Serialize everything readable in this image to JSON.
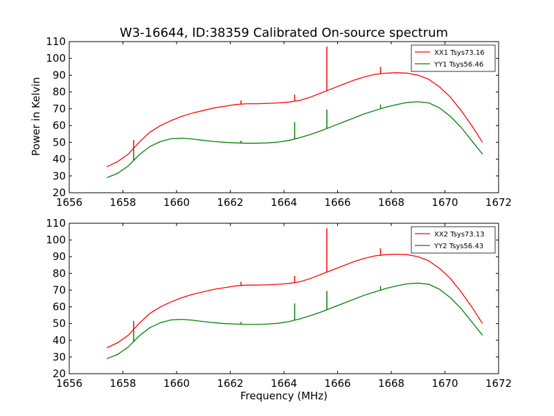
{
  "chart_data": {
    "title": "W3-16644, ID:38359 Calibrated On-source spectrum",
    "xlabel": "Frequency (MHz)",
    "ylabel": "Power in Kelvin",
    "panels": [
      {
        "type": "line",
        "xlim": [
          1656,
          1672
        ],
        "ylim": [
          20,
          110
        ],
        "xticks": [
          1656,
          1658,
          1660,
          1662,
          1664,
          1666,
          1668,
          1670,
          1672
        ],
        "yticks": [
          20,
          30,
          40,
          50,
          60,
          70,
          80,
          90,
          100,
          110
        ],
        "legend_position": "top-right",
        "series": [
          {
            "name": "XX1 Tsys73.16",
            "color": "#ff0000",
            "points": [
              [
                1657.4,
                35.5
              ],
              [
                1657.8,
                38.5
              ],
              [
                1658.2,
                43.0
              ],
              [
                1658.6,
                50.0
              ],
              [
                1659.0,
                56.0
              ],
              [
                1659.4,
                60.0
              ],
              [
                1659.8,
                63.0
              ],
              [
                1660.2,
                65.5
              ],
              [
                1660.6,
                67.5
              ],
              [
                1661.0,
                69.0
              ],
              [
                1661.4,
                70.5
              ],
              [
                1661.8,
                71.5
              ],
              [
                1662.2,
                72.5
              ],
              [
                1662.6,
                73.0
              ],
              [
                1663.0,
                73.0
              ],
              [
                1663.4,
                73.2
              ],
              [
                1663.8,
                73.5
              ],
              [
                1664.2,
                74.0
              ],
              [
                1664.6,
                75.0
              ],
              [
                1665.0,
                77.0
              ],
              [
                1665.4,
                79.5
              ],
              [
                1665.8,
                82.0
              ],
              [
                1666.2,
                84.5
              ],
              [
                1666.6,
                87.0
              ],
              [
                1667.0,
                89.0
              ],
              [
                1667.4,
                90.5
              ],
              [
                1667.8,
                91.2
              ],
              [
                1668.2,
                91.5
              ],
              [
                1668.6,
                91.2
              ],
              [
                1669.0,
                90.0
              ],
              [
                1669.4,
                87.5
              ],
              [
                1669.8,
                83.0
              ],
              [
                1670.2,
                77.0
              ],
              [
                1670.6,
                69.0
              ],
              [
                1671.0,
                60.0
              ],
              [
                1671.4,
                50.0
              ]
            ],
            "spikes": [
              [
                1658.4,
                51.5
              ],
              [
                1662.4,
                75.0
              ],
              [
                1664.4,
                78.5
              ],
              [
                1665.6,
                107.0
              ],
              [
                1667.6,
                95.0
              ]
            ]
          },
          {
            "name": "YY1 Tsys56.46",
            "color": "#008000",
            "points": [
              [
                1657.4,
                29.0
              ],
              [
                1657.8,
                31.5
              ],
              [
                1658.2,
                36.0
              ],
              [
                1658.6,
                42.5
              ],
              [
                1659.0,
                47.5
              ],
              [
                1659.4,
                50.5
              ],
              [
                1659.8,
                52.2
              ],
              [
                1660.2,
                52.5
              ],
              [
                1660.6,
                52.0
              ],
              [
                1661.0,
                51.2
              ],
              [
                1661.4,
                50.5
              ],
              [
                1661.8,
                50.0
              ],
              [
                1662.2,
                49.7
              ],
              [
                1662.6,
                49.5
              ],
              [
                1663.0,
                49.5
              ],
              [
                1663.4,
                49.7
              ],
              [
                1663.8,
                50.2
              ],
              [
                1664.2,
                51.2
              ],
              [
                1664.6,
                52.8
              ],
              [
                1665.0,
                54.8
              ],
              [
                1665.4,
                57.0
              ],
              [
                1665.8,
                59.5
              ],
              [
                1666.2,
                62.0
              ],
              [
                1666.6,
                64.5
              ],
              [
                1667.0,
                67.0
              ],
              [
                1667.4,
                69.0
              ],
              [
                1667.8,
                71.0
              ],
              [
                1668.2,
                72.5
              ],
              [
                1668.6,
                73.8
              ],
              [
                1669.0,
                74.2
              ],
              [
                1669.4,
                73.5
              ],
              [
                1669.8,
                70.5
              ],
              [
                1670.2,
                65.5
              ],
              [
                1670.6,
                59.0
              ],
              [
                1671.0,
                51.0
              ],
              [
                1671.4,
                43.0
              ]
            ],
            "spikes": [
              [
                1658.4,
                47.0
              ],
              [
                1662.4,
                51.0
              ],
              [
                1664.4,
                62.0
              ],
              [
                1665.6,
                69.5
              ],
              [
                1667.6,
                72.5
              ]
            ]
          }
        ]
      },
      {
        "type": "line",
        "xlim": [
          1656,
          1672
        ],
        "ylim": [
          20,
          110
        ],
        "xticks": [
          1656,
          1658,
          1660,
          1662,
          1664,
          1666,
          1668,
          1670,
          1672
        ],
        "yticks": [
          20,
          30,
          40,
          50,
          60,
          70,
          80,
          90,
          100,
          110
        ],
        "legend_position": "top-right",
        "series": [
          {
            "name": "XX2 Tsys73.13",
            "color": "#ff0000",
            "points": [
              [
                1657.4,
                35.5
              ],
              [
                1657.8,
                38.5
              ],
              [
                1658.2,
                43.0
              ],
              [
                1658.6,
                50.0
              ],
              [
                1659.0,
                56.0
              ],
              [
                1659.4,
                60.0
              ],
              [
                1659.8,
                63.0
              ],
              [
                1660.2,
                65.5
              ],
              [
                1660.6,
                67.5
              ],
              [
                1661.0,
                69.0
              ],
              [
                1661.4,
                70.5
              ],
              [
                1661.8,
                71.5
              ],
              [
                1662.2,
                72.5
              ],
              [
                1662.6,
                73.0
              ],
              [
                1663.0,
                73.0
              ],
              [
                1663.4,
                73.2
              ],
              [
                1663.8,
                73.5
              ],
              [
                1664.2,
                74.0
              ],
              [
                1664.6,
                75.0
              ],
              [
                1665.0,
                77.0
              ],
              [
                1665.4,
                79.5
              ],
              [
                1665.8,
                82.0
              ],
              [
                1666.2,
                84.5
              ],
              [
                1666.6,
                87.0
              ],
              [
                1667.0,
                89.0
              ],
              [
                1667.4,
                90.5
              ],
              [
                1667.8,
                91.2
              ],
              [
                1668.2,
                91.5
              ],
              [
                1668.6,
                91.2
              ],
              [
                1669.0,
                90.0
              ],
              [
                1669.4,
                87.5
              ],
              [
                1669.8,
                83.0
              ],
              [
                1670.2,
                77.0
              ],
              [
                1670.6,
                69.0
              ],
              [
                1671.0,
                60.0
              ],
              [
                1671.4,
                50.0
              ]
            ],
            "spikes": [
              [
                1658.4,
                51.5
              ],
              [
                1662.4,
                75.0
              ],
              [
                1664.4,
                78.5
              ],
              [
                1665.6,
                107.0
              ],
              [
                1667.6,
                95.0
              ]
            ]
          },
          {
            "name": "YY2 Tsys56.43",
            "color": "#008000",
            "points": [
              [
                1657.4,
                29.0
              ],
              [
                1657.8,
                31.5
              ],
              [
                1658.2,
                36.0
              ],
              [
                1658.6,
                42.5
              ],
              [
                1659.0,
                47.5
              ],
              [
                1659.4,
                50.5
              ],
              [
                1659.8,
                52.2
              ],
              [
                1660.2,
                52.5
              ],
              [
                1660.6,
                52.0
              ],
              [
                1661.0,
                51.2
              ],
              [
                1661.4,
                50.5
              ],
              [
                1661.8,
                50.0
              ],
              [
                1662.2,
                49.7
              ],
              [
                1662.6,
                49.5
              ],
              [
                1663.0,
                49.5
              ],
              [
                1663.4,
                49.7
              ],
              [
                1663.8,
                50.2
              ],
              [
                1664.2,
                51.2
              ],
              [
                1664.6,
                52.8
              ],
              [
                1665.0,
                54.8
              ],
              [
                1665.4,
                57.0
              ],
              [
                1665.8,
                59.5
              ],
              [
                1666.2,
                62.0
              ],
              [
                1666.6,
                64.5
              ],
              [
                1667.0,
                67.0
              ],
              [
                1667.4,
                69.0
              ],
              [
                1667.8,
                71.0
              ],
              [
                1668.2,
                72.5
              ],
              [
                1668.6,
                73.8
              ],
              [
                1669.0,
                74.2
              ],
              [
                1669.4,
                73.5
              ],
              [
                1669.8,
                70.5
              ],
              [
                1670.2,
                65.5
              ],
              [
                1670.6,
                59.0
              ],
              [
                1671.0,
                51.0
              ],
              [
                1671.4,
                43.0
              ]
            ],
            "spikes": [
              [
                1658.4,
                47.0
              ],
              [
                1662.4,
                51.0
              ],
              [
                1664.4,
                62.0
              ],
              [
                1665.6,
                69.5
              ],
              [
                1667.6,
                72.5
              ]
            ]
          }
        ]
      }
    ]
  }
}
